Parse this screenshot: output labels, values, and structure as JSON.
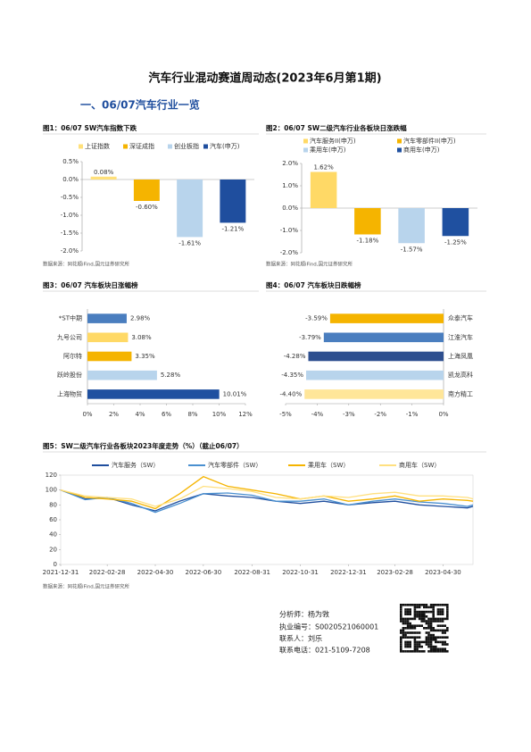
{
  "title": "汽车行业混动赛道周动态(2023年6月第1期)",
  "section": "一、06/07汽车行业一览",
  "chart_data": [
    {
      "type": "bar",
      "title": "图1：06/07 SW汽车指数下跌",
      "source": "数据来源：同花顺iFind,国元证券研究所",
      "categories": [
        "上证指数",
        "深证成指",
        "创业板指",
        "汽车(申万)"
      ],
      "values": [
        0.08,
        -0.6,
        -1.61,
        -1.21
      ],
      "value_labels": [
        "0.08%",
        "-0.60%",
        "-1.61%",
        "-1.21%"
      ],
      "colors": [
        "#ffe07a",
        "#f5b400",
        "#b8d4ec",
        "#1f4e9e"
      ],
      "ylim": [
        -2.0,
        0.5
      ],
      "yticks": [
        {
          "value": 0.5,
          "label": "0.5%"
        },
        {
          "value": 0,
          "label": "0.0%"
        },
        {
          "value": -0.5,
          "label": "-0.5%"
        },
        {
          "value": -1.0,
          "label": "-1.0%"
        },
        {
          "value": -1.5,
          "label": "-1.5%"
        },
        {
          "value": -2.0,
          "label": "-2.0%"
        }
      ]
    },
    {
      "type": "bar",
      "title": "图2：06/07 SW二级汽车行业各板块日涨跌幅",
      "source": "数据来源：同花顺iFind,国元证券研究所",
      "categories": [
        "汽车服务II(申万)",
        "汽车零部件II(申万)",
        "乘用车(申万)",
        "商用车(申万)"
      ],
      "values": [
        1.62,
        -1.18,
        -1.57,
        -1.25
      ],
      "value_labels": [
        "1.62%",
        "-1.18%",
        "-1.57%",
        "-1.25%"
      ],
      "colors": [
        "#ffd966",
        "#f5b400",
        "#b8d4ec",
        "#1f50a0"
      ],
      "ylim": [
        -2.0,
        2.0
      ],
      "yticks": [
        {
          "value": 2.0,
          "label": "2.0%"
        },
        {
          "value": 1.0,
          "label": "1.0%"
        },
        {
          "value": 0,
          "label": "0.0%"
        },
        {
          "value": -1.0,
          "label": "-1.0%"
        },
        {
          "value": -2.0,
          "label": "-2.0%"
        }
      ]
    },
    {
      "type": "hbar",
      "title": "图3：06/07 汽车板块日涨幅榜",
      "categories": [
        "*ST中期",
        "九号公司",
        "阿尔特",
        "跃岭股份",
        "上海物贸"
      ],
      "values": [
        2.98,
        3.08,
        3.35,
        5.28,
        10.01
      ],
      "value_labels": [
        "2.98%",
        "3.08%",
        "3.35%",
        "5.28%",
        "10.01%"
      ],
      "colors": [
        "#4a7ebf",
        "#ffd966",
        "#f5b400",
        "#b8d4ec",
        "#1f50a0"
      ],
      "xlim": [
        0,
        12
      ],
      "xticks": [
        {
          "value": 0,
          "label": "0%"
        },
        {
          "value": 2,
          "label": "2%"
        },
        {
          "value": 4,
          "label": "4%"
        },
        {
          "value": 6,
          "label": "6%"
        },
        {
          "value": 8,
          "label": "8%"
        },
        {
          "value": 10,
          "label": "10%"
        },
        {
          "value": 12,
          "label": "12%"
        }
      ]
    },
    {
      "type": "hbar",
      "title": "图4：06/07 汽车板块日跌幅榜",
      "categories": [
        "众泰汽车",
        "江淮汽车",
        "上海凤凰",
        "凯龙高科",
        "南方精工"
      ],
      "values": [
        -3.59,
        -3.79,
        -4.28,
        -4.35,
        -4.4
      ],
      "value_labels": [
        "-3.59%",
        "-3.79%",
        "-4.28%",
        "-4.35%",
        "-4.40%"
      ],
      "colors": [
        "#f5b400",
        "#4a7ebf",
        "#2e4f8f",
        "#b8d4ec",
        "#ffe699"
      ],
      "xlim": [
        -5,
        0
      ],
      "xticks": [
        {
          "value": -5,
          "label": "-5%"
        },
        {
          "value": -4,
          "label": "-4%"
        },
        {
          "value": -3,
          "label": "-3%"
        },
        {
          "value": -2,
          "label": "-2%"
        },
        {
          "value": -1,
          "label": "-1%"
        },
        {
          "value": 0,
          "label": "0%"
        }
      ]
    },
    {
      "type": "line",
      "title": "图5：SW二级汽车行业各板块2023年度走势（%）（截止06/07）",
      "source": "数据来源：同花顺iFind,国元证券研究所",
      "x": [
        "2021-12-31",
        "2022-01-31",
        "2022-02-28",
        "2022-03-31",
        "2022-04-30",
        "2022-05-31",
        "2022-06-30",
        "2022-07-31",
        "2022-08-31",
        "2022-09-30",
        "2022-10-31",
        "2022-11-30",
        "2022-12-31",
        "2023-01-31",
        "2023-02-28",
        "2023-03-31",
        "2023-04-30",
        "2023-05-31",
        "2023-06-07"
      ],
      "series": [
        {
          "name": "汽车服务（SW）",
          "color": "#1f4e9e",
          "values": [
            100,
            88,
            90,
            80,
            72,
            85,
            95,
            92,
            90,
            85,
            82,
            85,
            80,
            83,
            85,
            80,
            78,
            76,
            78
          ]
        },
        {
          "name": "汽车零部件（SW）",
          "color": "#4a90d0",
          "values": [
            100,
            87,
            90,
            82,
            70,
            82,
            95,
            96,
            93,
            85,
            85,
            88,
            80,
            85,
            88,
            84,
            82,
            78,
            80
          ]
        },
        {
          "name": "乘用车（SW）",
          "color": "#f5b400",
          "values": [
            100,
            90,
            88,
            85,
            75,
            95,
            118,
            105,
            100,
            95,
            88,
            92,
            85,
            88,
            92,
            85,
            88,
            86,
            85
          ]
        },
        {
          "name": "商用车（SW）",
          "color": "#ffe080",
          "values": [
            100,
            92,
            90,
            88,
            78,
            88,
            105,
            102,
            98,
            90,
            88,
            92,
            90,
            95,
            97,
            92,
            92,
            90,
            88
          ]
        }
      ],
      "xlim": [
        "2021-12-31",
        "2023-06-07"
      ],
      "xticks": [
        "2021-12-31",
        "2022-02-28",
        "2022-04-30",
        "2022-06-30",
        "2022-08-31",
        "2022-10-31",
        "2022-12-31",
        "2023-02-28",
        "2023-04-30"
      ],
      "ylim": [
        0,
        120
      ],
      "yticks": [
        0,
        20,
        40,
        60,
        80,
        100,
        120
      ]
    }
  ],
  "footer": {
    "analyst": "分析师：杨为敩",
    "license": "执业编号：S0020521060001",
    "contact": "联系人：刘乐",
    "phone": "联系电话：021-5109-7208"
  }
}
